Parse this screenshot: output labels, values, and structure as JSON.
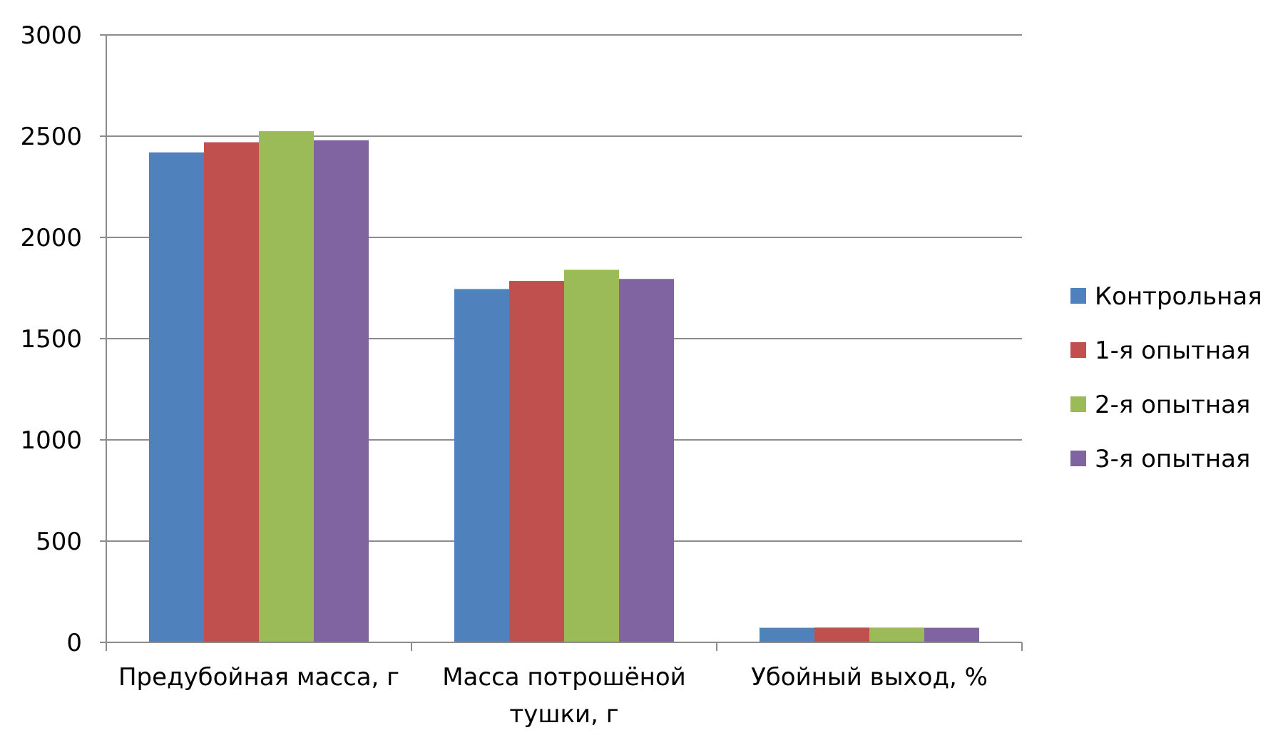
{
  "chart_data": {
    "type": "bar",
    "title": "",
    "xlabel": "",
    "ylabel": "",
    "categories": [
      [
        "Предубойная масса, г"
      ],
      [
        "Масса потрошёной",
        "тушки, г"
      ],
      [
        "Убойный выход, %"
      ]
    ],
    "series": [
      {
        "name": "Контрольная",
        "color": "#4F81BD",
        "values": [
          2420,
          1745,
          72
        ]
      },
      {
        "name": "1-я опытная",
        "color": "#C0504D",
        "values": [
          2470,
          1785,
          73
        ]
      },
      {
        "name": "2-я опытная",
        "color": "#9BBB59",
        "values": [
          2525,
          1840,
          73
        ]
      },
      {
        "name": "3-я опытная",
        "color": "#8064A2",
        "values": [
          2480,
          1795,
          72
        ]
      }
    ],
    "yticks": [
      "0",
      "500",
      "1000",
      "1500",
      "2000",
      "2500",
      "3000"
    ],
    "ylim": [
      0,
      3000
    ],
    "grid": true,
    "legend": "right"
  }
}
